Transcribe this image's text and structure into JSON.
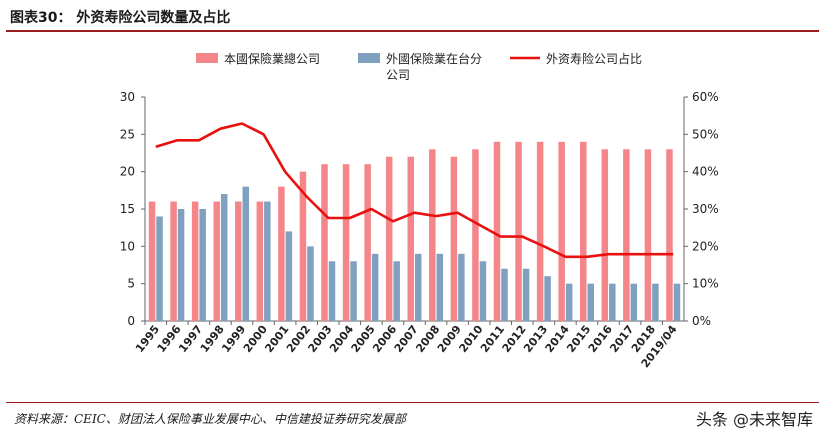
{
  "header": {
    "title": "图表30：  外资寿险公司数量及占比"
  },
  "footer": {
    "source": "资料来源：CEIC、财团法人保险事业发展中心、中信建投证券研究发展部",
    "watermark": "头条 @未来智库"
  },
  "colors": {
    "total_bar": "#f4868a",
    "foreign_bar": "#7fa1bf",
    "share_line": "#e8110f",
    "rule": "#9b1c1c"
  },
  "chart_data": {
    "type": "bar",
    "categories": [
      "1995",
      "1996",
      "1997",
      "1998",
      "1999",
      "2000",
      "2001",
      "2002",
      "2003",
      "2004",
      "2005",
      "2006",
      "2007",
      "2008",
      "2009",
      "2010",
      "2011",
      "2012",
      "2013",
      "2014",
      "2015",
      "2016",
      "2017",
      "2018",
      "2019/04"
    ],
    "series": [
      {
        "name": "本國保險業總公司",
        "type": "bar",
        "axis": "left",
        "values": [
          16,
          16,
          16,
          16,
          16,
          16,
          18,
          20,
          21,
          21,
          21,
          22,
          22,
          23,
          22,
          23,
          24,
          24,
          24,
          24,
          24,
          23,
          23,
          23,
          23
        ]
      },
      {
        "name": "外國保險業在台分公司",
        "type": "bar",
        "axis": "left",
        "values": [
          14,
          15,
          15,
          17,
          18,
          16,
          12,
          10,
          8,
          8,
          9,
          8,
          9,
          9,
          9,
          8,
          7,
          7,
          6,
          5,
          5,
          5,
          5,
          5,
          5
        ]
      },
      {
        "name": "外资寿险公司占比",
        "type": "line",
        "axis": "right",
        "values": [
          46.7,
          48.4,
          48.4,
          51.5,
          52.9,
          50.0,
          40.0,
          33.3,
          27.6,
          27.6,
          30.0,
          26.7,
          29.0,
          28.1,
          29.0,
          25.8,
          22.6,
          22.6,
          20.0,
          17.2,
          17.2,
          17.9,
          17.9,
          17.9,
          17.9
        ]
      }
    ],
    "y_left": {
      "lim": [
        0,
        30
      ],
      "ticks": [
        "0",
        "5",
        "10",
        "15",
        "20",
        "25",
        "30"
      ]
    },
    "y_right": {
      "lim": [
        0,
        60
      ],
      "ticks": [
        "0%",
        "10%",
        "20%",
        "30%",
        "40%",
        "50%",
        "60%"
      ]
    },
    "legend_position": "top",
    "grid": false
  }
}
